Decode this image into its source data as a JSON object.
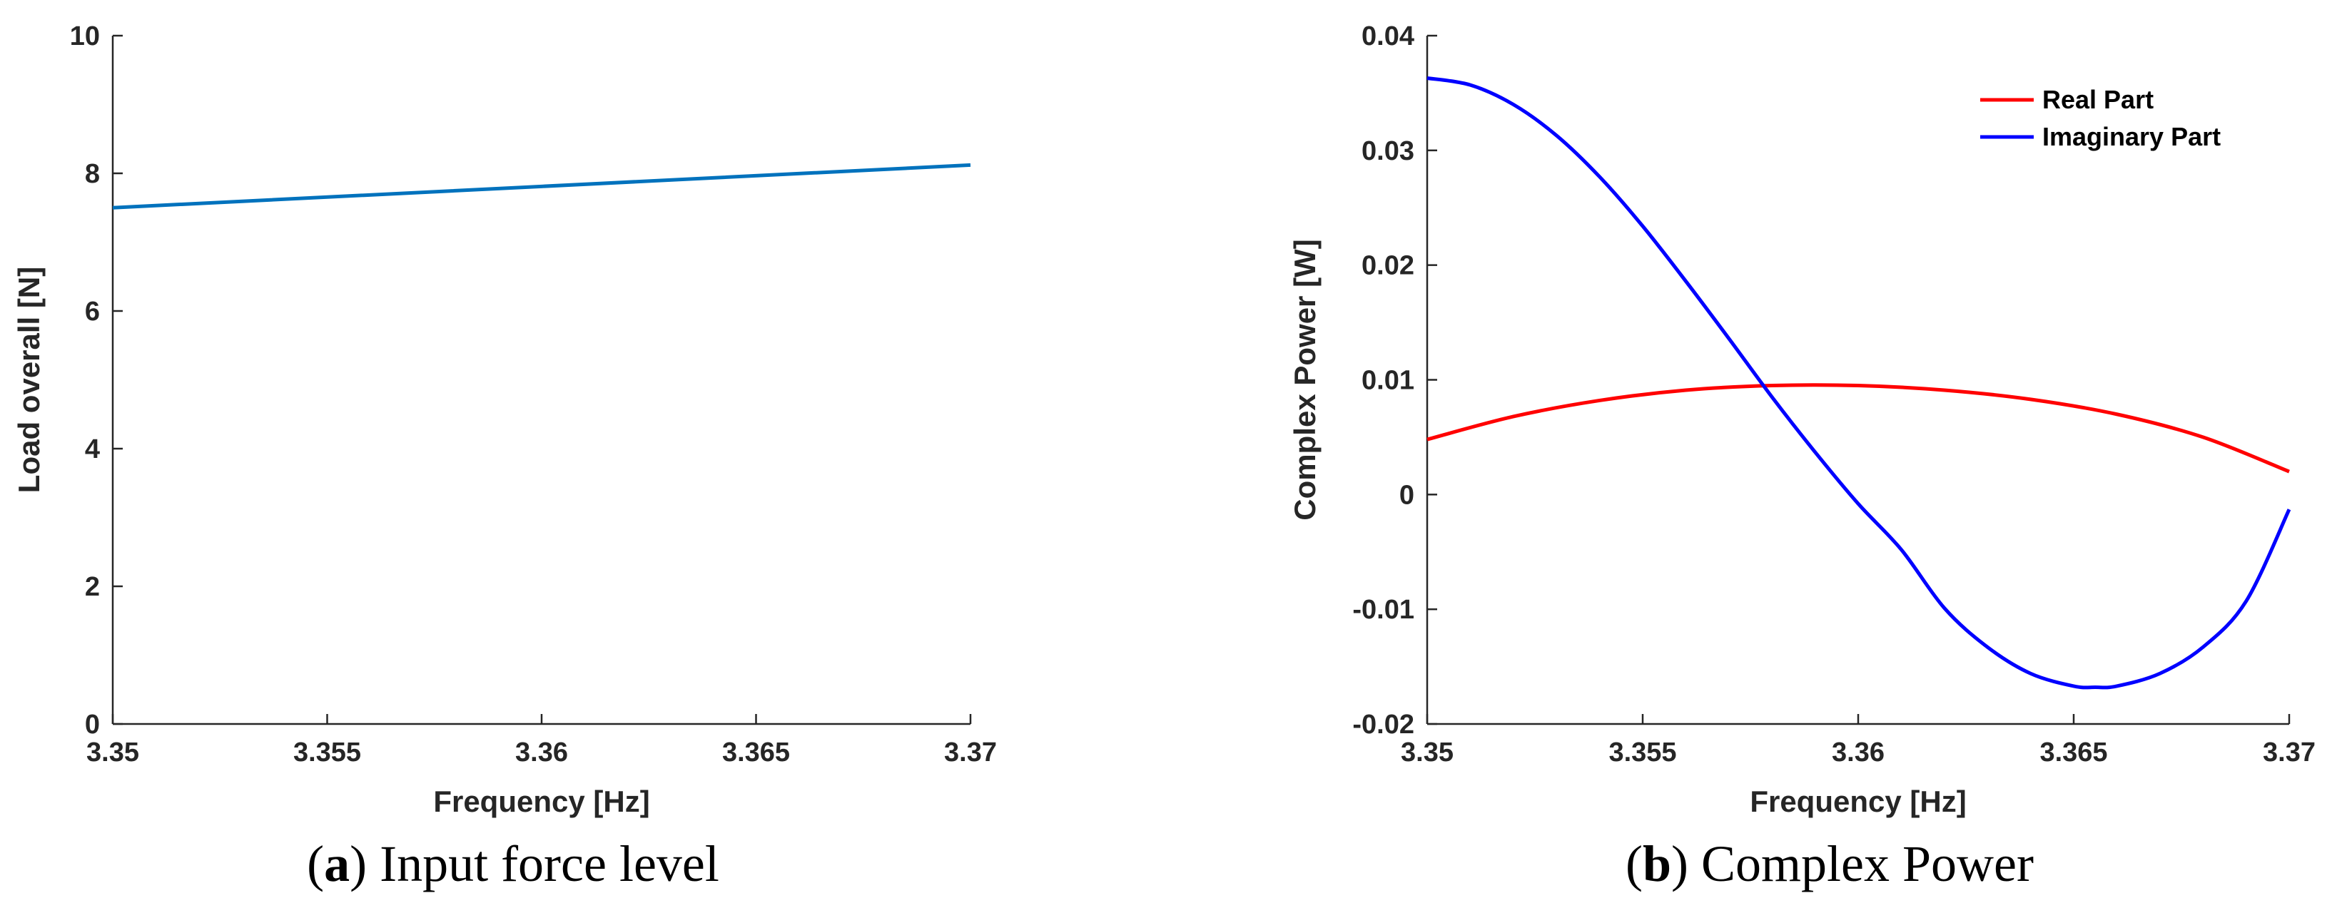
{
  "chart_data": [
    {
      "type": "line",
      "caption_letter": "a",
      "caption_text": "Input force level",
      "xlabel": "Frequency [Hz]",
      "ylabel": "Load overall [N]",
      "xlim": [
        3.35,
        3.37
      ],
      "ylim": [
        0,
        10
      ],
      "xticks": [
        3.35,
        3.355,
        3.36,
        3.365,
        3.37
      ],
      "xtick_labels": [
        "3.35",
        "3.355",
        "3.36",
        "3.365",
        "3.37"
      ],
      "yticks": [
        0,
        2,
        4,
        6,
        8,
        10
      ],
      "ytick_labels": [
        "0",
        "2",
        "4",
        "6",
        "8",
        "10"
      ],
      "grid": false,
      "series": [
        {
          "name": "Load overall",
          "color": "#0072BD",
          "x": [
            3.35,
            3.37
          ],
          "y": [
            7.5,
            8.12
          ]
        }
      ]
    },
    {
      "type": "line",
      "caption_letter": "b",
      "caption_text": "Complex Power",
      "xlabel": "Frequency [Hz]",
      "ylabel": "Complex Power [W]",
      "xlim": [
        3.35,
        3.37
      ],
      "ylim": [
        -0.02,
        0.04
      ],
      "xticks": [
        3.35,
        3.355,
        3.36,
        3.365,
        3.37
      ],
      "xtick_labels": [
        "3.35",
        "3.355",
        "3.36",
        "3.365",
        "3.37"
      ],
      "yticks": [
        -0.02,
        -0.01,
        0,
        0.01,
        0.02,
        0.03,
        0.04
      ],
      "ytick_labels": [
        "-0.02",
        "-0.01",
        "0",
        "0.01",
        "0.02",
        "0.03",
        "0.04"
      ],
      "grid": false,
      "legend_position": "top-right",
      "series": [
        {
          "name": "Real Part",
          "color": "#FF0000",
          "x": [
            3.35,
            3.352,
            3.354,
            3.356,
            3.358,
            3.36,
            3.362,
            3.364,
            3.366,
            3.368,
            3.37
          ],
          "y": [
            0.0048,
            0.0068,
            0.0082,
            0.0091,
            0.0095,
            0.0095,
            0.0091,
            0.0083,
            0.007,
            0.005,
            0.002
          ]
        },
        {
          "name": "Imaginary Part",
          "color": "#0000FF",
          "x": [
            3.35,
            3.351,
            3.352,
            3.353,
            3.354,
            3.355,
            3.356,
            3.357,
            3.358,
            3.359,
            3.36,
            3.361,
            3.362,
            3.363,
            3.364,
            3.365,
            3.3655,
            3.366,
            3.367,
            3.368,
            3.369,
            3.37
          ],
          "y": [
            0.0363,
            0.0357,
            0.034,
            0.0313,
            0.0277,
            0.0234,
            0.0186,
            0.0136,
            0.0085,
            0.0037,
            -0.0008,
            -0.0048,
            -0.0099,
            -0.0133,
            -0.0156,
            -0.0167,
            -0.0168,
            -0.0167,
            -0.0156,
            -0.0133,
            -0.0093,
            -0.0013
          ]
        }
      ]
    }
  ]
}
